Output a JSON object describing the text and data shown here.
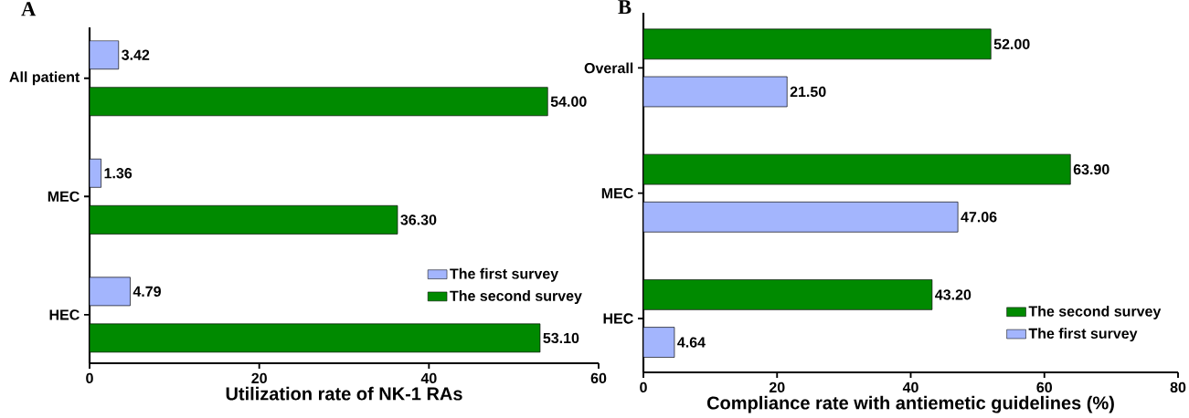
{
  "chart_data": [
    {
      "type": "bar",
      "orientation": "horizontal",
      "title": "A",
      "xlabel": "Utilization rate of NK-1 RAs",
      "categories": [
        "All patient",
        "MEC",
        "HEC"
      ],
      "series": [
        {
          "name": "The first survey",
          "color": "#a3b5fd",
          "values": [
            3.42,
            1.36,
            4.79
          ],
          "value_labels": [
            "3.42",
            "1.36",
            "4.79"
          ]
        },
        {
          "name": "The second survey",
          "color": "#008a00",
          "values": [
            54.0,
            36.3,
            53.1
          ],
          "value_labels": [
            "54.00",
            "36.30",
            "53.10"
          ]
        }
      ],
      "xlim": [
        0,
        60
      ],
      "xticks": [
        0,
        20,
        40,
        60
      ],
      "grid": false,
      "legend": "bottom right"
    },
    {
      "type": "bar",
      "orientation": "horizontal",
      "title": "B",
      "xlabel": "Compliance rate with antiemetic guidelines (%)",
      "categories": [
        "Overall",
        "MEC",
        "HEC"
      ],
      "series": [
        {
          "name": "The second survey",
          "color": "#008a00",
          "values": [
            52.0,
            63.9,
            43.2
          ],
          "value_labels": [
            "52.00",
            "63.90",
            "43.20"
          ]
        },
        {
          "name": "The first survey",
          "color": "#a3b5fd",
          "values": [
            21.5,
            47.06,
            4.64
          ],
          "value_labels": [
            "21.50",
            "47.06",
            "4.64"
          ]
        }
      ],
      "xlim": [
        0,
        80
      ],
      "xticks": [
        0,
        20,
        40,
        60,
        80
      ],
      "grid": false,
      "legend": "bottom right"
    }
  ]
}
